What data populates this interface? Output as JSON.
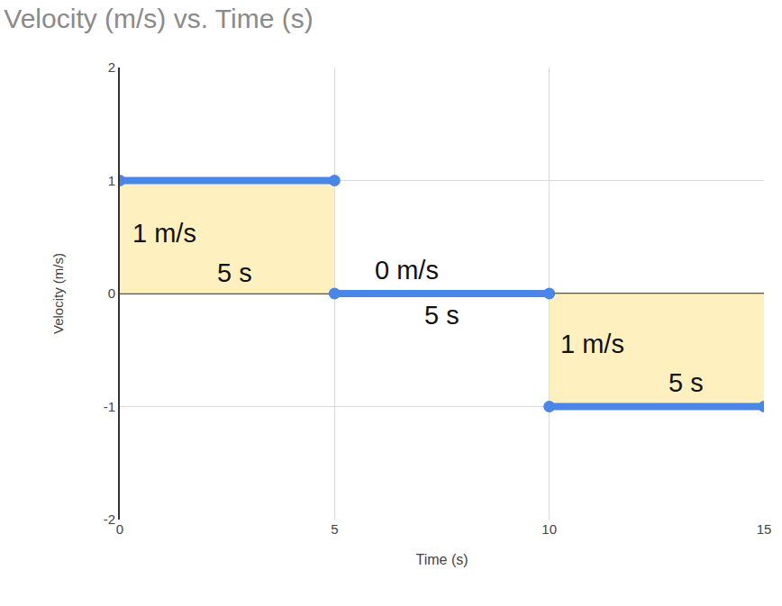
{
  "chart_data": {
    "type": "line",
    "title": "Velocity (m/s) vs. Time (s)",
    "x_label": "Time (s)",
    "y_label": "Velocity (m/s)",
    "series": [
      {
        "name": "Velocity",
        "color": "#4a86e8",
        "marker": "circle",
        "line_style": "solid",
        "x": [
          0,
          5,
          5,
          5,
          10,
          10,
          10,
          15
        ],
        "values": [
          1,
          1,
          null,
          0,
          0,
          null,
          -1,
          -1
        ]
      }
    ],
    "xlim": [
      0,
      15
    ],
    "xticks": [
      0,
      5,
      10,
      15
    ],
    "ylim": [
      -2,
      2
    ],
    "yticks": [
      -2,
      -1,
      0,
      1,
      2
    ],
    "grid": true,
    "annotations": [
      {
        "text": "1 m/s",
        "x": 1.04,
        "y": 0.53
      },
      {
        "text": "5 s",
        "x": 2.68,
        "y": 0.18
      },
      {
        "text": "0 m/s",
        "x": 6.69,
        "y": 0.21
      },
      {
        "text": "5 s",
        "x": 7.5,
        "y": -0.19
      },
      {
        "text": "1 m/s",
        "x": 11.0,
        "y": -0.45
      },
      {
        "text": "5 s",
        "x": 13.18,
        "y": -0.79
      }
    ]
  }
}
